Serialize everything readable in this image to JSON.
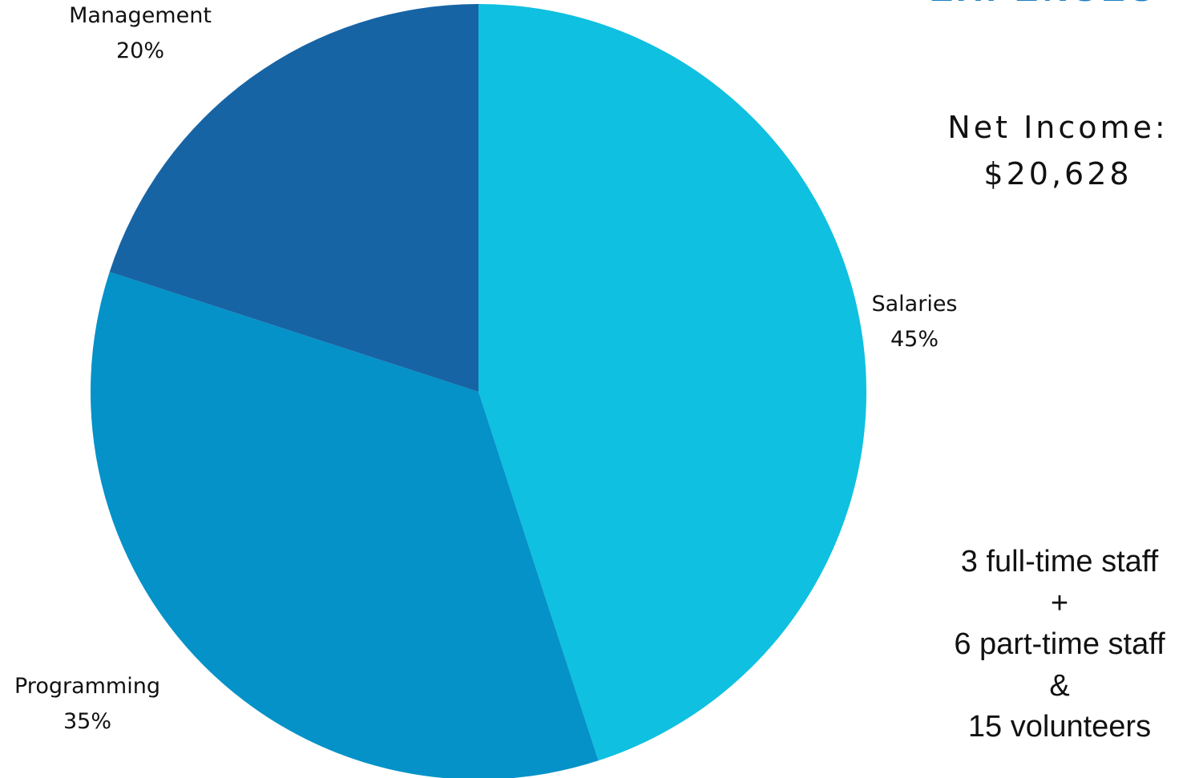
{
  "chart_data": {
    "type": "pie",
    "title": "",
    "slices": [
      {
        "label": "Salaries",
        "value": 45,
        "value_label": "45%",
        "color": "#0fc0e0"
      },
      {
        "label": "Programming",
        "value": 35,
        "value_label": "35%",
        "color": "#0492c8"
      },
      {
        "label": "Management",
        "value": 20,
        "value_label": "20%",
        "color": "#1764a5"
      }
    ]
  },
  "header": {
    "title_partial": "EXPENSES",
    "color": "#1a7fc1"
  },
  "net_income": {
    "label": "Net Income:",
    "value": "$20,628"
  },
  "staff": {
    "full_time": "3 full-time staff",
    "plus": "+",
    "part_time": "6 part-time staff",
    "and": "&",
    "volunteers": "15 volunteers"
  }
}
